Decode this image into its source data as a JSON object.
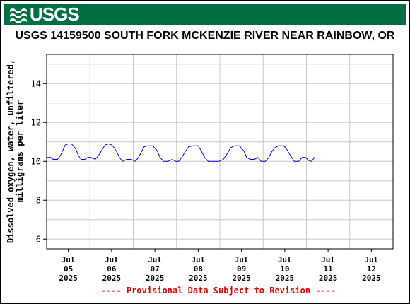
{
  "header": {
    "agency": "USGS",
    "title": "USGS 14159500 SOUTH FORK MCKENZIE RIVER NEAR RAINBOW, OR",
    "footer": "---- Provisional Data Subject to Revision ----"
  },
  "colors": {
    "banner": "#006f41",
    "series": "#0000cc",
    "footer": "#e00000"
  },
  "chart_data": {
    "type": "line",
    "title": "USGS 14159500 SOUTH FORK MCKENZIE RIVER NEAR RAINBOW, OR",
    "ylabel": "Dissolved oxygen, water, unfiltered, milligrams per liter",
    "ylabel_lines": [
      "Dissolved oxygen, water, unfiltered,",
      "milligrams per liter"
    ],
    "xlabel": "",
    "ylim": [
      5.5,
      15.5
    ],
    "xlim": [
      0,
      8
    ],
    "yticks": [
      6,
      8,
      10,
      12,
      14
    ],
    "xticks": [
      {
        "x": 0.5,
        "lines": [
          "Jul",
          "05",
          "2025"
        ]
      },
      {
        "x": 1.5,
        "lines": [
          "Jul",
          "06",
          "2025"
        ]
      },
      {
        "x": 2.5,
        "lines": [
          "Jul",
          "07",
          "2025"
        ]
      },
      {
        "x": 3.5,
        "lines": [
          "Jul",
          "08",
          "2025"
        ]
      },
      {
        "x": 4.5,
        "lines": [
          "Jul",
          "09",
          "2025"
        ]
      },
      {
        "x": 5.5,
        "lines": [
          "Jul",
          "10",
          "2025"
        ]
      },
      {
        "x": 6.5,
        "lines": [
          "Jul",
          "11",
          "2025"
        ]
      },
      {
        "x": 7.5,
        "lines": [
          "Jul",
          "12",
          "2025"
        ]
      }
    ],
    "grid": true,
    "series": [
      {
        "color": "#0000cc",
        "points": [
          [
            0.0,
            10.2
          ],
          [
            0.1,
            10.2
          ],
          [
            0.15,
            10.1
          ],
          [
            0.25,
            10.1
          ],
          [
            0.32,
            10.3
          ],
          [
            0.38,
            10.6
          ],
          [
            0.43,
            10.85
          ],
          [
            0.5,
            10.9
          ],
          [
            0.57,
            10.9
          ],
          [
            0.62,
            10.8
          ],
          [
            0.68,
            10.6
          ],
          [
            0.73,
            10.3
          ],
          [
            0.8,
            10.1
          ],
          [
            0.88,
            10.1
          ],
          [
            0.95,
            10.2
          ],
          [
            1.03,
            10.2
          ],
          [
            1.12,
            10.1
          ],
          [
            1.2,
            10.3
          ],
          [
            1.28,
            10.6
          ],
          [
            1.35,
            10.85
          ],
          [
            1.43,
            10.9
          ],
          [
            1.5,
            10.85
          ],
          [
            1.56,
            10.7
          ],
          [
            1.62,
            10.5
          ],
          [
            1.68,
            10.2
          ],
          [
            1.75,
            10.0
          ],
          [
            1.85,
            10.1
          ],
          [
            1.95,
            10.1
          ],
          [
            2.05,
            10.0
          ],
          [
            2.12,
            10.2
          ],
          [
            2.18,
            10.45
          ],
          [
            2.25,
            10.75
          ],
          [
            2.33,
            10.8
          ],
          [
            2.45,
            10.8
          ],
          [
            2.55,
            10.55
          ],
          [
            2.62,
            10.2
          ],
          [
            2.7,
            10.0
          ],
          [
            2.8,
            10.0
          ],
          [
            2.9,
            10.1
          ],
          [
            2.98,
            10.0
          ],
          [
            3.05,
            10.0
          ],
          [
            3.12,
            10.2
          ],
          [
            3.2,
            10.5
          ],
          [
            3.28,
            10.75
          ],
          [
            3.38,
            10.8
          ],
          [
            3.5,
            10.8
          ],
          [
            3.58,
            10.5
          ],
          [
            3.65,
            10.2
          ],
          [
            3.73,
            10.0
          ],
          [
            3.85,
            10.0
          ],
          [
            3.98,
            10.0
          ],
          [
            4.08,
            10.1
          ],
          [
            4.17,
            10.4
          ],
          [
            4.25,
            10.7
          ],
          [
            4.33,
            10.8
          ],
          [
            4.45,
            10.8
          ],
          [
            4.55,
            10.55
          ],
          [
            4.62,
            10.2
          ],
          [
            4.7,
            10.1
          ],
          [
            4.8,
            10.1
          ],
          [
            4.88,
            10.2
          ],
          [
            4.95,
            10.0
          ],
          [
            5.05,
            10.0
          ],
          [
            5.13,
            10.2
          ],
          [
            5.2,
            10.5
          ],
          [
            5.27,
            10.7
          ],
          [
            5.35,
            10.8
          ],
          [
            5.48,
            10.8
          ],
          [
            5.55,
            10.6
          ],
          [
            5.63,
            10.3
          ],
          [
            5.72,
            10.0
          ],
          [
            5.82,
            10.0
          ],
          [
            5.9,
            10.2
          ],
          [
            5.98,
            10.2
          ],
          [
            6.05,
            10.05
          ],
          [
            6.12,
            10.0
          ],
          [
            6.2,
            10.25
          ]
        ]
      }
    ]
  }
}
